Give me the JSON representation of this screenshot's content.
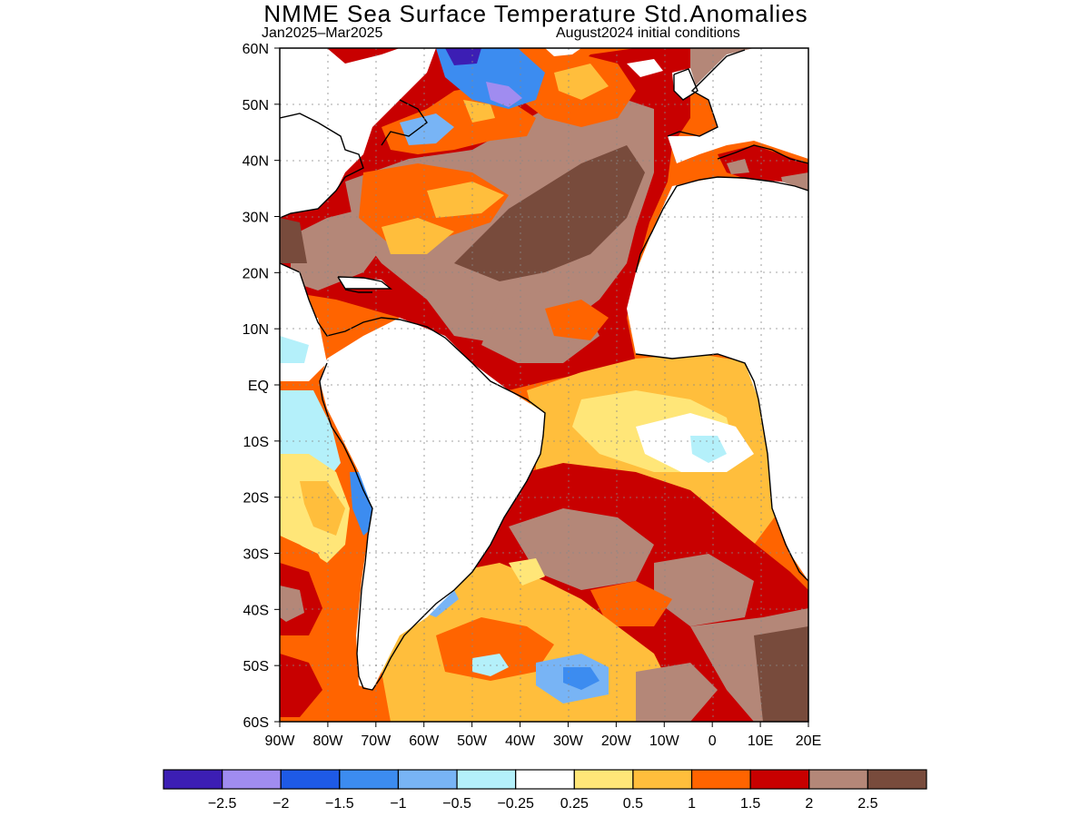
{
  "title": "NMME Sea Surface Temperature Std.Anomalies",
  "subtitle_left": "Jan2025–Mar2025",
  "subtitle_right": "August2024 initial conditions",
  "lat_ticks": [
    "60N",
    "50N",
    "40N",
    "30N",
    "20N",
    "10N",
    "EQ",
    "10S",
    "20S",
    "30S",
    "40S",
    "50S",
    "60S"
  ],
  "lon_ticks": [
    "90W",
    "80W",
    "70W",
    "60W",
    "50W",
    "40W",
    "30W",
    "20W",
    "10W",
    "0",
    "10E",
    "20E"
  ],
  "colorbar": {
    "colors": [
      "#3c1eb4",
      "#a08cf0",
      "#1e5ae6",
      "#3c8cf0",
      "#78b4f5",
      "#b4f0fa",
      "#ffffff",
      "#ffe678",
      "#ffbe3c",
      "#ff6400",
      "#c80000",
      "#b48778",
      "#784b3c"
    ],
    "labels": [
      "−2.5",
      "−2",
      "−1.5",
      "−1",
      "−0.5",
      "−0.25",
      "0.25",
      "0.5",
      "1",
      "1.5",
      "2",
      "2.5"
    ]
  }
}
